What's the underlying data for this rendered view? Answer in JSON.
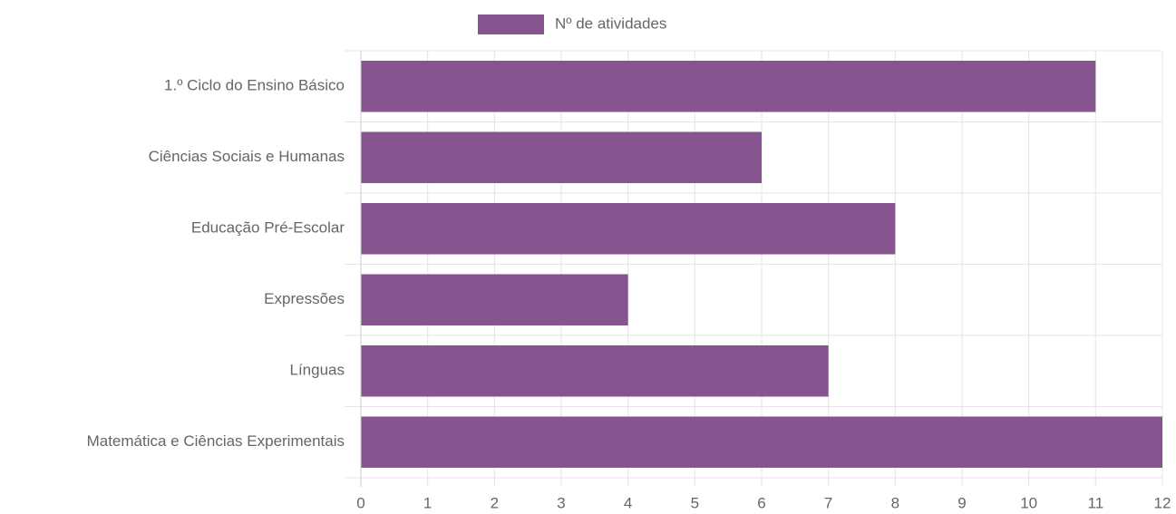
{
  "chart_data": {
    "type": "bar",
    "orientation": "horizontal",
    "categories": [
      "1.º Ciclo do Ensino Básico",
      "Ciências Sociais e Humanas",
      "Educação Pré-Escolar",
      "Expressões",
      "Línguas",
      "Matemática e Ciências Experimentais"
    ],
    "series": [
      {
        "name": "Nº de atividades",
        "color": "#86548f",
        "values": [
          11,
          6,
          8,
          4,
          7,
          12
        ]
      }
    ],
    "xlim": [
      0,
      12
    ],
    "xticks": [
      0,
      1,
      2,
      3,
      4,
      5,
      6,
      7,
      8,
      9,
      10,
      11,
      12
    ],
    "grid": true,
    "legend": "top"
  }
}
